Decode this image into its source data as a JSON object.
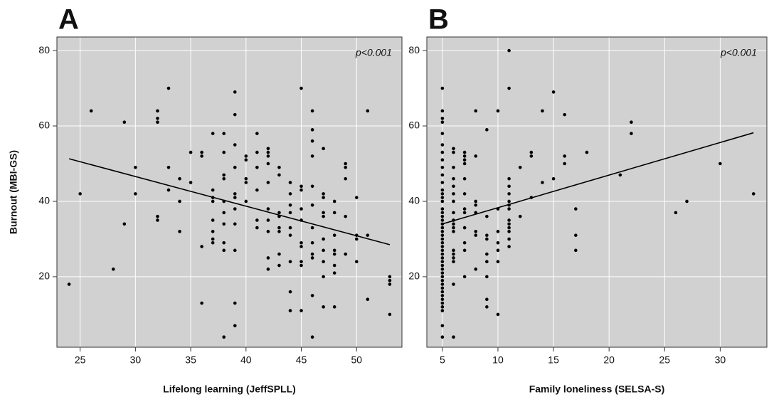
{
  "chart_data": [
    {
      "type": "scatter",
      "panel_label": "A",
      "annotation": "p<0.001",
      "x_label": "Lifelong learning (JeffSPLL)",
      "y_label": "Burnout (MBI-GS)",
      "color": "#000000",
      "grid": true,
      "xlim": [
        22.9,
        54.1
      ],
      "ylim": [
        1.3,
        83.6
      ],
      "xticks": [
        25,
        30,
        35,
        40,
        45,
        50
      ],
      "yticks": [
        20,
        40,
        60,
        80
      ],
      "fit": {
        "x": [
          24,
          53
        ],
        "y": [
          51.3,
          28.5
        ]
      },
      "x": [
        24,
        25,
        26,
        28,
        29,
        29,
        30,
        30,
        32,
        32,
        32,
        32,
        32,
        33,
        33,
        33,
        34,
        34,
        34,
        35,
        35,
        36,
        36,
        36,
        36,
        37,
        37,
        37,
        37,
        37,
        37,
        37,
        37,
        38,
        38,
        38,
        38,
        38,
        38,
        38,
        38,
        38,
        38,
        39,
        39,
        39,
        39,
        39,
        39,
        39,
        39,
        39,
        39,
        39,
        40,
        40,
        40,
        40,
        40,
        41,
        41,
        41,
        41,
        41,
        41,
        42,
        42,
        42,
        42,
        42,
        42,
        42,
        42,
        42,
        42,
        43,
        43,
        43,
        43,
        43,
        43,
        43,
        43,
        44,
        44,
        44,
        44,
        44,
        44,
        44,
        44,
        44,
        45,
        45,
        45,
        45,
        45,
        45,
        45,
        45,
        45,
        45,
        46,
        46,
        46,
        46,
        46,
        46,
        46,
        46,
        46,
        46,
        46,
        46,
        47,
        47,
        47,
        47,
        47,
        47,
        47,
        47,
        47,
        47,
        48,
        48,
        48,
        48,
        48,
        48,
        48,
        48,
        49,
        49,
        49,
        49,
        49,
        50,
        50,
        50,
        50,
        51,
        51,
        51,
        53,
        53,
        53,
        53
      ],
      "values": [
        18,
        42,
        64,
        22,
        61,
        34,
        49,
        42,
        64,
        62,
        61,
        36,
        35,
        70,
        49,
        43,
        46,
        40,
        32,
        53,
        45,
        53,
        52,
        28,
        13,
        58,
        43,
        41,
        40,
        35,
        32,
        30,
        29,
        58,
        53,
        47,
        46,
        40,
        37,
        34,
        29,
        27,
        4,
        69,
        63,
        55,
        49,
        42,
        41,
        38,
        34,
        27,
        13,
        7,
        52,
        51,
        46,
        45,
        40,
        58,
        53,
        49,
        43,
        35,
        33,
        54,
        53,
        52,
        50,
        45,
        38,
        35,
        32,
        25,
        22,
        49,
        47,
        37,
        36,
        33,
        32,
        26,
        23,
        45,
        42,
        39,
        37,
        33,
        31,
        24,
        16,
        11,
        70,
        44,
        43,
        38,
        35,
        29,
        28,
        24,
        23,
        11,
        64,
        59,
        56,
        52,
        44,
        39,
        33,
        29,
        26,
        25,
        15,
        4,
        54,
        42,
        41,
        37,
        36,
        30,
        27,
        24,
        20,
        12,
        40,
        37,
        31,
        27,
        26,
        23,
        21,
        12,
        50,
        49,
        46,
        36,
        26,
        41,
        31,
        30,
        24,
        64,
        31,
        14,
        20,
        19,
        18,
        10
      ]
    },
    {
      "type": "scatter",
      "panel_label": "B",
      "annotation": "p<0.001",
      "x_label": "Family loneliness (SELSA-S)",
      "color": "#000000",
      "grid": true,
      "xlim": [
        3.6,
        34.2
      ],
      "ylim": [
        1.3,
        83.6
      ],
      "xticks": [
        5,
        10,
        15,
        20,
        25,
        30
      ],
      "yticks": [
        20,
        40,
        60,
        80
      ],
      "fit": {
        "x": [
          5,
          33
        ],
        "y": [
          34,
          58.2
        ]
      },
      "x": [
        5,
        5,
        5,
        5,
        5,
        5,
        5,
        5,
        5,
        5,
        5,
        5,
        5,
        5,
        5,
        5,
        5,
        5,
        5,
        5,
        5,
        5,
        5,
        5,
        5,
        5,
        5,
        5,
        5,
        5,
        5,
        5,
        5,
        5,
        5,
        5,
        5,
        5,
        5,
        5,
        5,
        5,
        5,
        5,
        5,
        6,
        6,
        6,
        6,
        6,
        6,
        6,
        6,
        6,
        6,
        6,
        6,
        6,
        6,
        6,
        6,
        6,
        6,
        7,
        7,
        7,
        7,
        7,
        7,
        7,
        7,
        7,
        7,
        7,
        7,
        8,
        8,
        8,
        8,
        8,
        8,
        8,
        8,
        9,
        9,
        9,
        9,
        9,
        9,
        9,
        9,
        9,
        10,
        10,
        10,
        10,
        10,
        10,
        10,
        11,
        11,
        11,
        11,
        11,
        11,
        11,
        11,
        11,
        11,
        11,
        11,
        11,
        11,
        12,
        12,
        13,
        13,
        13,
        14,
        14,
        15,
        15,
        16,
        16,
        16,
        17,
        17,
        17,
        18,
        21,
        22,
        22,
        26,
        27,
        30,
        33
      ],
      "values": [
        70,
        64,
        62,
        61,
        58,
        55,
        53,
        51,
        49,
        47,
        45,
        43,
        42,
        41,
        40,
        38,
        37,
        36,
        35,
        34,
        33,
        32,
        31,
        30,
        29,
        28,
        27,
        26,
        25,
        24,
        23,
        22,
        21,
        20,
        19,
        18,
        17,
        16,
        15,
        14,
        13,
        12,
        11,
        7,
        4,
        54,
        53,
        49,
        46,
        44,
        42,
        40,
        37,
        35,
        34,
        33,
        32,
        27,
        26,
        25,
        24,
        18,
        4,
        53,
        52,
        51,
        50,
        46,
        42,
        38,
        37,
        33,
        29,
        27,
        20,
        64,
        52,
        40,
        39,
        37,
        32,
        31,
        22,
        59,
        36,
        31,
        30,
        26,
        24,
        20,
        14,
        12,
        64,
        38,
        32,
        29,
        27,
        24,
        10,
        80,
        70,
        46,
        44,
        42,
        40,
        39,
        38,
        35,
        34,
        33,
        32,
        30,
        28,
        49,
        36,
        53,
        52,
        41,
        64,
        45,
        69,
        46,
        63,
        52,
        50,
        38,
        31,
        27,
        53,
        47,
        61,
        58,
        37,
        40,
        50,
        42
      ]
    }
  ]
}
